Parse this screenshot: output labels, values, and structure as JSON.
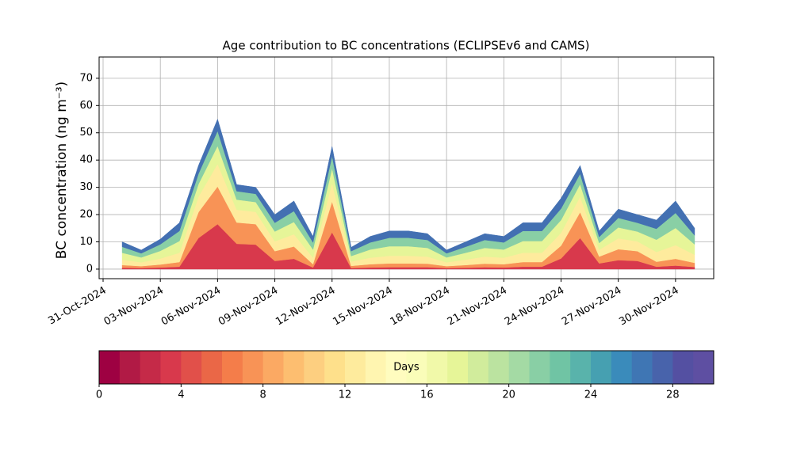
{
  "chart_data": {
    "type": "stacked_area",
    "title": "Age contribution to BC concentrations (ECLIPSEv6 and CAMS)",
    "ylabel": "BC concentration (ng m⁻³)",
    "x": [
      "2024-11-01",
      "2024-11-02",
      "2024-11-03",
      "2024-11-04",
      "2024-11-05",
      "2024-11-06",
      "2024-11-07",
      "2024-11-08",
      "2024-11-09",
      "2024-11-10",
      "2024-11-11",
      "2024-11-12",
      "2024-11-13",
      "2024-11-14",
      "2024-11-15",
      "2024-11-16",
      "2024-11-17",
      "2024-11-18",
      "2024-11-19",
      "2024-11-20",
      "2024-11-21",
      "2024-11-22",
      "2024-11-23",
      "2024-11-24",
      "2024-11-25",
      "2024-11-26",
      "2024-11-27",
      "2024-11-28",
      "2024-11-29",
      "2024-11-30",
      "2024-12-01"
    ],
    "series": [
      {
        "color": "#d8394c",
        "values": [
          0.5,
          0.4,
          0.6,
          0.9,
          11.4,
          16.5,
          9.3,
          9,
          3,
          3.8,
          0.6,
          13.5,
          0.4,
          0.6,
          0.7,
          0.7,
          0.7,
          0.4,
          0.5,
          0.7,
          0.6,
          0.9,
          0.9,
          3.9,
          11.4,
          2.1,
          3.3,
          3,
          0.9,
          1.3,
          0.8
        ]
      },
      {
        "color": "#f89356",
        "values": [
          1,
          0.7,
          1.1,
          1.7,
          9.5,
          13.8,
          7.8,
          7.5,
          3.6,
          4.5,
          1.2,
          11.3,
          0.8,
          1.2,
          1.4,
          1.4,
          1.3,
          0.7,
          1,
          1.3,
          1.2,
          1.7,
          1.7,
          4.7,
          9.5,
          2.5,
          4,
          3.6,
          1.8,
          2.5,
          1.5
        ]
      },
      {
        "color": "#feeb9d",
        "values": [
          2,
          1.4,
          2.2,
          3.4,
          5.7,
          8.3,
          4.7,
          4.5,
          3.6,
          4.5,
          2.4,
          6.8,
          1.6,
          2.4,
          2.8,
          2.8,
          2.6,
          1.4,
          2,
          2.6,
          2.4,
          3.4,
          3.4,
          4.7,
          5.7,
          2.5,
          4,
          3.6,
          3.6,
          5,
          3
        ]
      },
      {
        "color": "#e6f598",
        "values": [
          2.5,
          1.8,
          2.8,
          4.3,
          4.6,
          6.6,
          3.7,
          3.6,
          3.6,
          4.5,
          3,
          5.4,
          2,
          3,
          3.5,
          3.5,
          3.2,
          1.8,
          2.5,
          3.2,
          3,
          4.3,
          4.3,
          4.7,
          4.6,
          2.5,
          4,
          3.6,
          4.5,
          6.3,
          3.8
        ]
      },
      {
        "color": "#89cfa5",
        "values": [
          2.2,
          1.5,
          2.4,
          3.7,
          3.8,
          5.5,
          3.1,
          3,
          3.2,
          4,
          2.6,
          4.5,
          1.8,
          2.6,
          3.1,
          3.1,
          2.9,
          1.5,
          2.2,
          2.9,
          2.6,
          3.7,
          3.7,
          4.2,
          3.8,
          2.2,
          3.5,
          3.2,
          4,
          5.5,
          3.3
        ]
      },
      {
        "color": "#4370b2",
        "values": [
          1.8,
          1.2,
          1.9,
          3,
          3,
          4.3,
          2.4,
          2.4,
          3,
          3.7,
          2.2,
          3.5,
          1.4,
          2.2,
          2.5,
          2.5,
          2.3,
          1.2,
          1.8,
          2.3,
          2.2,
          3,
          3,
          3.8,
          3,
          2.2,
          3.2,
          3,
          3.2,
          4.4,
          2.6
        ]
      }
    ],
    "xlim": [
      "2024-10-31",
      "2024-12-02"
    ],
    "xticks": [
      {
        "value": "2024-10-31",
        "label": "31-Oct-2024"
      },
      {
        "value": "2024-11-03",
        "label": "03-Nov-2024"
      },
      {
        "value": "2024-11-06",
        "label": "06-Nov-2024"
      },
      {
        "value": "2024-11-09",
        "label": "09-Nov-2024"
      },
      {
        "value": "2024-11-12",
        "label": "12-Nov-2024"
      },
      {
        "value": "2024-11-15",
        "label": "15-Nov-2024"
      },
      {
        "value": "2024-11-18",
        "label": "18-Nov-2024"
      },
      {
        "value": "2024-11-21",
        "label": "21-Nov-2024"
      },
      {
        "value": "2024-11-24",
        "label": "24-Nov-2024"
      },
      {
        "value": "2024-11-27",
        "label": "27-Nov-2024"
      },
      {
        "value": "2024-11-30",
        "label": "30-Nov-2024"
      }
    ],
    "ylim": [
      -3.5,
      77.8
    ],
    "yticks": [
      0,
      10,
      20,
      30,
      40,
      50,
      60,
      70
    ],
    "grid": true,
    "colorbar": {
      "label": "Days",
      "lim": [
        0,
        30
      ],
      "ticks": [
        0,
        4,
        8,
        12,
        16,
        20,
        24,
        28
      ],
      "colors": [
        "#9e0142",
        "#b11a45",
        "#c52a48",
        "#d8394c",
        "#e1504a",
        "#ea6747",
        "#f47d4a",
        "#f89356",
        "#fba963",
        "#fdbe70",
        "#fdcf80",
        "#fee08b",
        "#feeb9d",
        "#fff5b0",
        "#fffcbf",
        "#fafdb9",
        "#f1f9a9",
        "#e6f598",
        "#d1ec9c",
        "#bbe3a0",
        "#a4daa4",
        "#89cfa5",
        "#70c4a4",
        "#59b3ab",
        "#46a0b1",
        "#3a8bbb",
        "#3f76b4",
        "#4863ab",
        "#5450a2",
        "#5e4fa2"
      ]
    }
  }
}
